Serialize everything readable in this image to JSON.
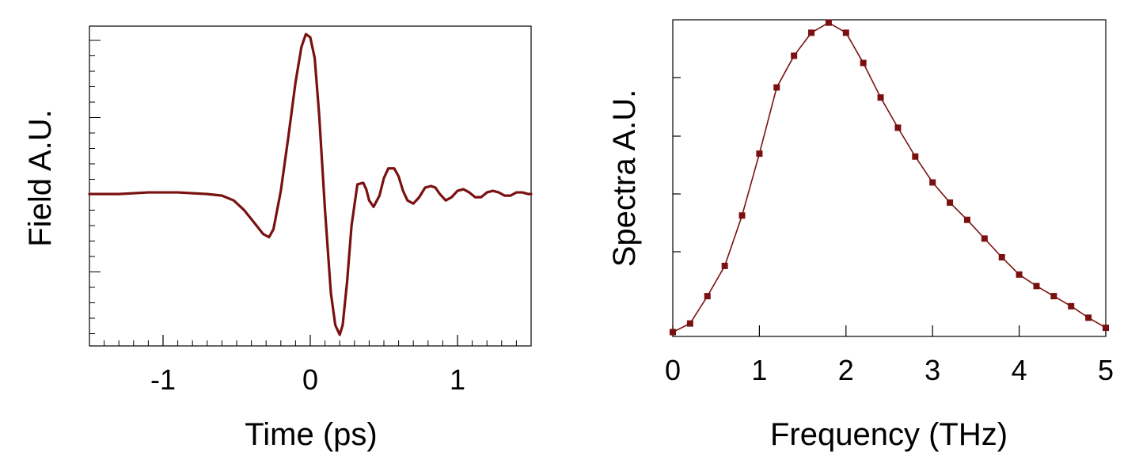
{
  "chart_data": [
    {
      "type": "line",
      "xlabel": "Time (ps)",
      "ylabel": "Field A.U.",
      "xlim": [
        -1.5,
        1.5
      ],
      "ylim": [
        -0.95,
        1.05
      ],
      "x_ticks": [
        -1,
        0,
        1
      ],
      "x_tick_labels": [
        "-1",
        "0",
        "1"
      ],
      "y_tick_labels": [],
      "grid": false,
      "color": "#7a1010",
      "series": [
        {
          "x": [
            -1.5,
            -1.3,
            -1.1,
            -0.9,
            -0.7,
            -0.6,
            -0.52,
            -0.45,
            -0.38,
            -0.32,
            -0.28,
            -0.25,
            -0.2,
            -0.15,
            -0.1,
            -0.06,
            -0.03,
            0.0,
            0.03,
            0.06,
            0.1,
            0.14,
            0.17,
            0.2,
            0.22,
            0.25,
            0.28,
            0.32,
            0.36,
            0.38,
            0.4,
            0.43,
            0.47,
            0.5,
            0.53,
            0.57,
            0.6,
            0.63,
            0.66,
            0.7,
            0.74,
            0.78,
            0.82,
            0.85,
            0.88,
            0.92,
            0.96,
            1.0,
            1.04,
            1.08,
            1.12,
            1.16,
            1.2,
            1.24,
            1.28,
            1.32,
            1.36,
            1.4,
            1.44,
            1.48,
            1.5
          ],
          "y": [
            0.0,
            0.0,
            0.01,
            0.01,
            0.0,
            -0.01,
            -0.04,
            -0.1,
            -0.18,
            -0.25,
            -0.27,
            -0.22,
            0.02,
            0.35,
            0.7,
            0.92,
            1.0,
            0.98,
            0.85,
            0.5,
            -0.1,
            -0.62,
            -0.82,
            -0.88,
            -0.82,
            -0.55,
            -0.2,
            0.06,
            0.07,
            0.03,
            -0.04,
            -0.08,
            -0.01,
            0.1,
            0.16,
            0.16,
            0.11,
            0.02,
            -0.04,
            -0.06,
            -0.02,
            0.04,
            0.05,
            0.04,
            0.0,
            -0.04,
            -0.02,
            0.02,
            0.03,
            0.01,
            -0.02,
            -0.02,
            0.01,
            0.02,
            0.01,
            -0.01,
            -0.01,
            0.01,
            0.01,
            0.0,
            0.0
          ]
        }
      ]
    },
    {
      "type": "line",
      "xlabel": "Frequency (THz)",
      "ylabel": "Spectra A.U.",
      "xlim": [
        0,
        5
      ],
      "ylim": [
        0,
        1.1
      ],
      "x_ticks": [
        0,
        1,
        2,
        3,
        4,
        5
      ],
      "x_tick_labels": [
        "0",
        "1",
        "2",
        "3",
        "4",
        "5"
      ],
      "y_tick_labels": [],
      "grid": false,
      "markers": "square",
      "color": "#7a1010",
      "series": [
        {
          "x": [
            0.0,
            0.2,
            0.4,
            0.6,
            0.8,
            1.0,
            1.2,
            1.4,
            1.6,
            1.8,
            2.0,
            2.2,
            2.4,
            2.6,
            2.8,
            3.0,
            3.2,
            3.4,
            3.6,
            3.8,
            4.0,
            4.2,
            4.4,
            4.6,
            4.8,
            5.0
          ],
          "y": [
            0.015,
            0.045,
            0.14,
            0.245,
            0.42,
            0.635,
            0.865,
            0.975,
            1.055,
            1.09,
            1.055,
            0.95,
            0.83,
            0.725,
            0.625,
            0.535,
            0.465,
            0.405,
            0.34,
            0.275,
            0.215,
            0.175,
            0.14,
            0.105,
            0.065,
            0.03
          ]
        }
      ]
    }
  ]
}
